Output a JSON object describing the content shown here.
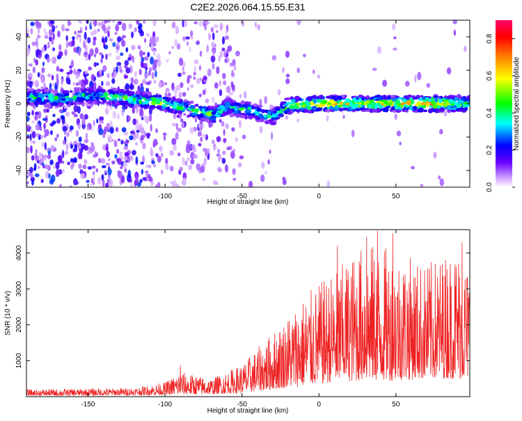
{
  "chart_data": [
    {
      "type": "heatmap",
      "title": "C2E2.2026.064.15.55.E31",
      "xlabel": "Height of straight line (km)",
      "ylabel": "Frequency (Hz)",
      "xlim": [
        -190,
        98
      ],
      "ylim": [
        -50,
        50
      ],
      "xticks": [
        -150,
        -100,
        -50,
        0,
        50
      ],
      "yticks": [
        -40,
        -20,
        0,
        20,
        40
      ],
      "colorbar": {
        "label": "Normalized spectral amplitude",
        "range": [
          0,
          0.9
        ],
        "ticks": [
          0.0,
          0.2,
          0.4,
          0.6,
          0.8
        ],
        "colors": [
          "#ffffff",
          "#cc99ff",
          "#6600ff",
          "#0000ff",
          "#00ffff",
          "#00ff00",
          "#ffff00",
          "#ff8000",
          "#ff0000",
          "#ff0066"
        ]
      },
      "ridge": {
        "description_points": [
          {
            "x": -187,
            "freq": 4,
            "amp": 0.45
          },
          {
            "x": -170,
            "freq": 3,
            "amp": 0.5
          },
          {
            "x": -150,
            "freq": 5,
            "amp": 0.45
          },
          {
            "x": -130,
            "freq": 4,
            "amp": 0.5
          },
          {
            "x": -105,
            "freq": 1,
            "amp": 0.55
          },
          {
            "x": -85,
            "freq": -3,
            "amp": 0.5
          },
          {
            "x": -68,
            "freq": -7,
            "amp": 0.5
          },
          {
            "x": -60,
            "freq": -2,
            "amp": 0.45
          },
          {
            "x": -45,
            "freq": -4,
            "amp": 0.45
          },
          {
            "x": -30,
            "freq": -8,
            "amp": 0.4
          },
          {
            "x": -20,
            "freq": -1,
            "amp": 0.55
          },
          {
            "x": 0,
            "freq": 0,
            "amp": 0.75
          },
          {
            "x": 25,
            "freq": 0,
            "amp": 0.65
          },
          {
            "x": 50,
            "freq": 0,
            "amp": 0.7
          },
          {
            "x": 75,
            "freq": 0,
            "amp": 0.8
          },
          {
            "x": 97,
            "freq": 0,
            "amp": 0.5
          }
        ]
      }
    },
    {
      "type": "line",
      "xlabel": "Height of straight line (km)",
      "ylabel": "SNR (10 * v/v)",
      "xlim": [
        -190,
        98
      ],
      "ylim": [
        0,
        4650
      ],
      "xticks": [
        -150,
        -100,
        -50,
        0,
        50
      ],
      "yticks": [
        1000,
        2000,
        3000,
        4000
      ],
      "color": "#ee2222",
      "envelope": [
        {
          "x": -190,
          "low": 30,
          "high": 200
        },
        {
          "x": -160,
          "low": 30,
          "high": 220
        },
        {
          "x": -120,
          "low": 40,
          "high": 250
        },
        {
          "x": -100,
          "low": 50,
          "high": 400
        },
        {
          "x": -90,
          "low": 60,
          "high": 700
        },
        {
          "x": -70,
          "low": 70,
          "high": 500
        },
        {
          "x": -50,
          "low": 100,
          "high": 900
        },
        {
          "x": -30,
          "low": 200,
          "high": 1800
        },
        {
          "x": -10,
          "low": 300,
          "high": 2800
        },
        {
          "x": 10,
          "low": 400,
          "high": 3500
        },
        {
          "x": 30,
          "low": 450,
          "high": 4300
        },
        {
          "x": 50,
          "low": 450,
          "high": 4100
        },
        {
          "x": 70,
          "low": 500,
          "high": 3700
        },
        {
          "x": 90,
          "low": 500,
          "high": 4200
        },
        {
          "x": 98,
          "low": 500,
          "high": 3600
        }
      ],
      "peaks": [
        {
          "x": 12,
          "y": 4200
        },
        {
          "x": 31,
          "y": 4450
        },
        {
          "x": 38,
          "y": 4620
        },
        {
          "x": 48,
          "y": 4550
        },
        {
          "x": 93,
          "y": 4300
        },
        {
          "x": -90,
          "y": 870
        }
      ]
    }
  ]
}
